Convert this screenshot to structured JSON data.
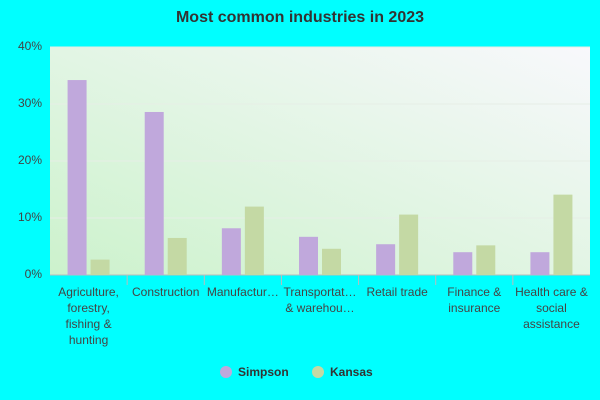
{
  "chart_data": {
    "type": "bar",
    "title": "Most common industries in 2023",
    "categories": [
      "Agriculture, forestry, fishing & hunting",
      "Construction",
      "Manufactur…",
      "Transportat… & warehou…",
      "Retail trade",
      "Finance & insurance",
      "Health care & social assistance"
    ],
    "series": [
      {
        "name": "Simpson",
        "color": "#c0a8dc",
        "values": [
          34.2,
          28.6,
          8.2,
          6.7,
          5.4,
          4.0,
          4.0
        ]
      },
      {
        "name": "Kansas",
        "color": "#c4d9a4",
        "values": [
          2.7,
          6.5,
          12.0,
          4.6,
          10.6,
          5.2,
          14.1
        ]
      }
    ],
    "ylim": [
      0,
      40
    ],
    "yticks": [
      {
        "value": 0,
        "label": "0%"
      },
      {
        "value": 10,
        "label": "10%"
      },
      {
        "value": 20,
        "label": "20%"
      },
      {
        "value": 30,
        "label": "30%"
      },
      {
        "value": 40,
        "label": "40%"
      }
    ],
    "grid": true
  }
}
